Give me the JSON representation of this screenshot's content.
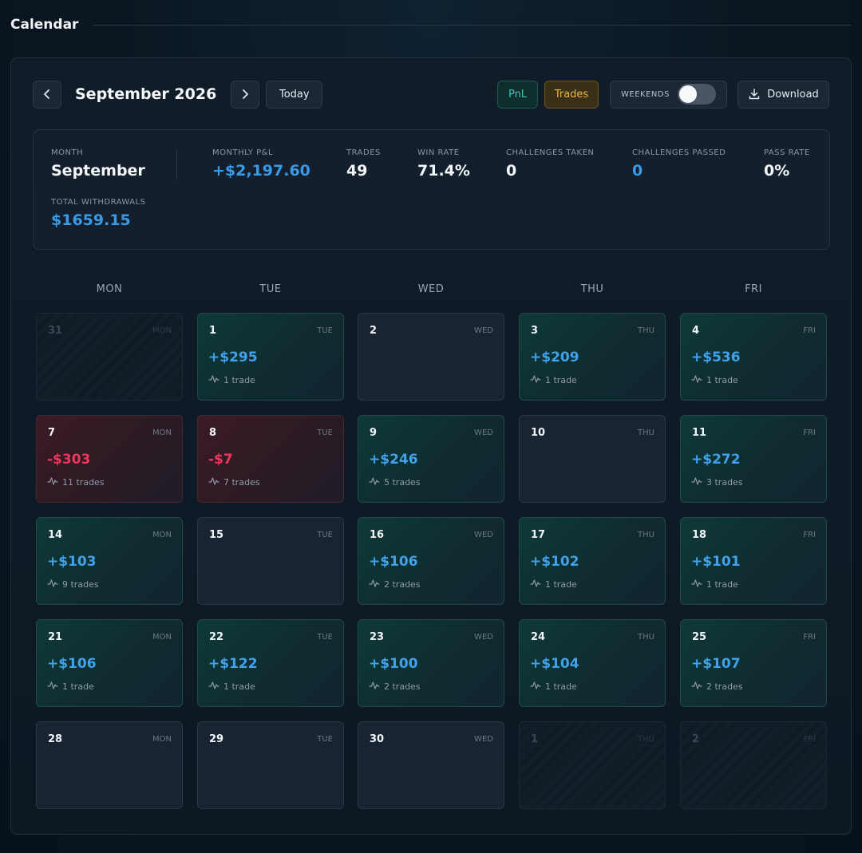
{
  "header": {
    "title": "Calendar"
  },
  "toolbar": {
    "prev_icon": "chevron-left-icon",
    "next_icon": "chevron-right-icon",
    "month_label": "September 2026",
    "today_label": "Today",
    "pnl_label": "PnL",
    "trades_label": "Trades",
    "weekends_label": "WEEKENDS",
    "weekends_on": false,
    "download_label": "Download"
  },
  "stats": {
    "month_label": "MONTH",
    "month_value": "September",
    "pnl_label": "MONTHLY P&L",
    "pnl_value": "+$2,197.60",
    "trades_label": "TRADES",
    "trades_value": "49",
    "winrate_label": "WIN RATE",
    "winrate_value": "71.4%",
    "challenges_taken_label": "CHALLENGES TAKEN",
    "challenges_taken_value": "0",
    "challenges_passed_label": "CHALLENGES PASSED",
    "challenges_passed_value": "0",
    "pass_rate_label": "PASS RATE",
    "pass_rate_value": "0%",
    "withdrawals_label": "TOTAL WITHDRAWALS",
    "withdrawals_value": "$1659.15"
  },
  "weekdays": [
    "MON",
    "TUE",
    "WED",
    "THU",
    "FRI"
  ],
  "colors": {
    "positive": "#3ea2ee",
    "negative": "#f0365c",
    "pnl_accent": "#3ac6b3",
    "trades_accent": "#f0b43d"
  },
  "days": [
    {
      "day": "31",
      "dow": "MON",
      "state": "out",
      "pnl": "",
      "trades": ""
    },
    {
      "day": "1",
      "dow": "TUE",
      "state": "pos",
      "pnl": "+$295",
      "trades": "1 trade"
    },
    {
      "day": "2",
      "dow": "WED",
      "state": "empty",
      "pnl": "",
      "trades": ""
    },
    {
      "day": "3",
      "dow": "THU",
      "state": "pos",
      "pnl": "+$209",
      "trades": "1 trade"
    },
    {
      "day": "4",
      "dow": "FRI",
      "state": "pos",
      "pnl": "+$536",
      "trades": "1 trade"
    },
    {
      "day": "7",
      "dow": "MON",
      "state": "neg",
      "pnl": "-$303",
      "trades": "11 trades"
    },
    {
      "day": "8",
      "dow": "TUE",
      "state": "neg",
      "pnl": "-$7",
      "trades": "7 trades"
    },
    {
      "day": "9",
      "dow": "WED",
      "state": "pos",
      "pnl": "+$246",
      "trades": "5 trades"
    },
    {
      "day": "10",
      "dow": "THU",
      "state": "empty",
      "pnl": "",
      "trades": ""
    },
    {
      "day": "11",
      "dow": "FRI",
      "state": "pos",
      "pnl": "+$272",
      "trades": "3 trades"
    },
    {
      "day": "14",
      "dow": "MON",
      "state": "pos",
      "pnl": "+$103",
      "trades": "9 trades"
    },
    {
      "day": "15",
      "dow": "TUE",
      "state": "empty",
      "pnl": "",
      "trades": ""
    },
    {
      "day": "16",
      "dow": "WED",
      "state": "pos",
      "pnl": "+$106",
      "trades": "2 trades"
    },
    {
      "day": "17",
      "dow": "THU",
      "state": "pos",
      "pnl": "+$102",
      "trades": "1 trade"
    },
    {
      "day": "18",
      "dow": "FRI",
      "state": "pos",
      "pnl": "+$101",
      "trades": "1 trade"
    },
    {
      "day": "21",
      "dow": "MON",
      "state": "pos",
      "pnl": "+$106",
      "trades": "1 trade"
    },
    {
      "day": "22",
      "dow": "TUE",
      "state": "pos",
      "pnl": "+$122",
      "trades": "1 trade"
    },
    {
      "day": "23",
      "dow": "WED",
      "state": "pos",
      "pnl": "+$100",
      "trades": "2 trades"
    },
    {
      "day": "24",
      "dow": "THU",
      "state": "pos",
      "pnl": "+$104",
      "trades": "1 trade"
    },
    {
      "day": "25",
      "dow": "FRI",
      "state": "pos",
      "pnl": "+$107",
      "trades": "2 trades"
    },
    {
      "day": "28",
      "dow": "MON",
      "state": "empty",
      "pnl": "",
      "trades": ""
    },
    {
      "day": "29",
      "dow": "TUE",
      "state": "empty",
      "pnl": "",
      "trades": ""
    },
    {
      "day": "30",
      "dow": "WED",
      "state": "empty",
      "pnl": "",
      "trades": ""
    },
    {
      "day": "1",
      "dow": "THU",
      "state": "out",
      "pnl": "",
      "trades": ""
    },
    {
      "day": "2",
      "dow": "FRI",
      "state": "out",
      "pnl": "",
      "trades": ""
    }
  ]
}
